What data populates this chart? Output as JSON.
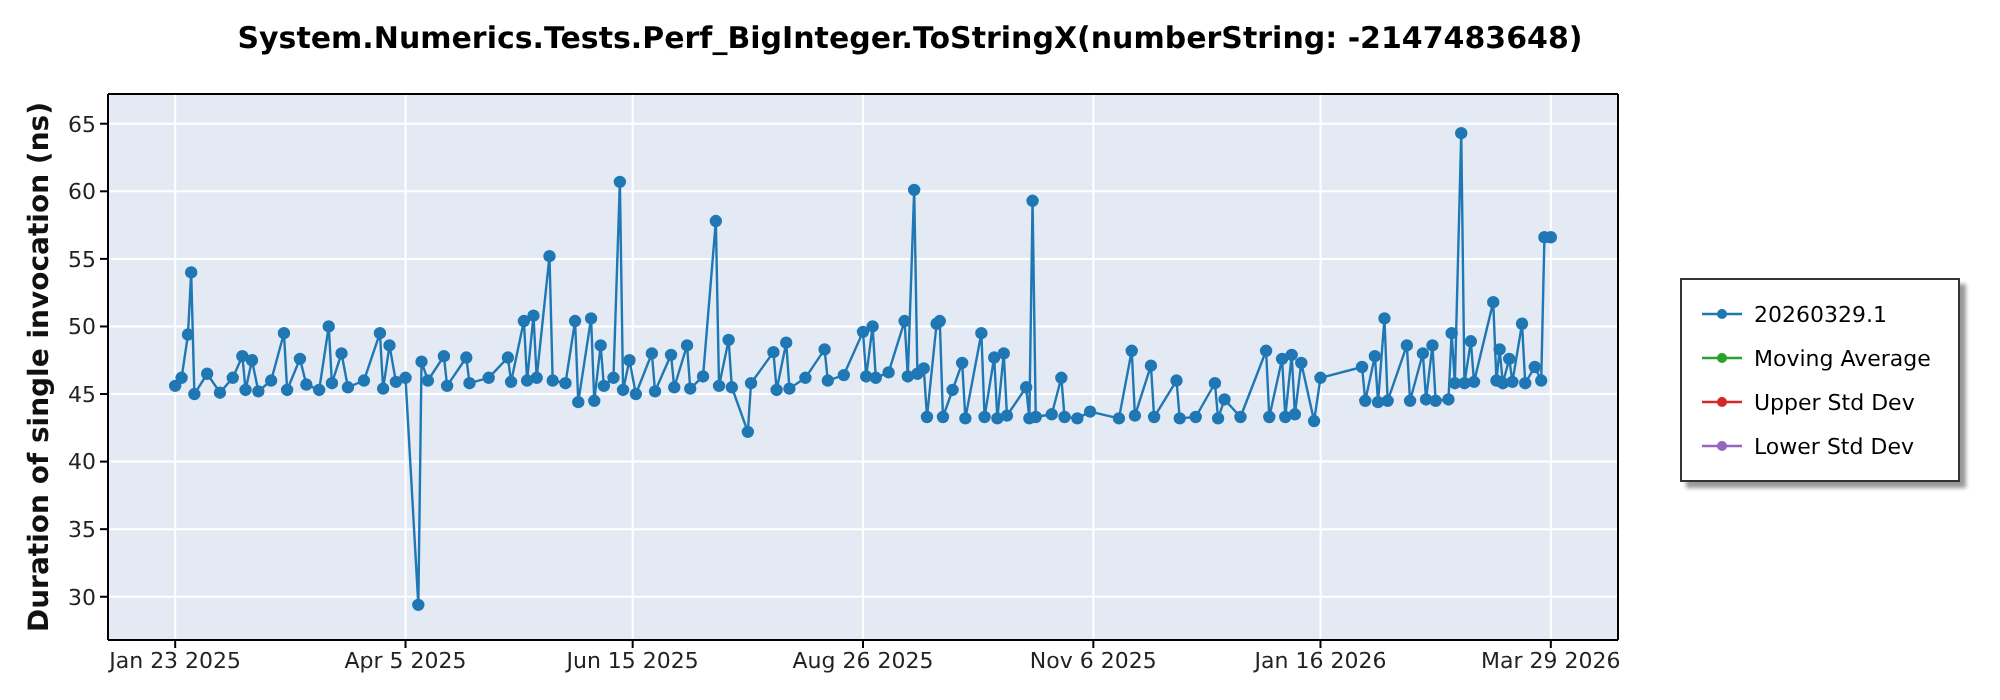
{
  "chart_data": {
    "type": "line",
    "title": "System.Numerics.Tests.Perf_BigInteger.ToStringX(numberString: -2147483648)",
    "ylabel": "Duration of single invocation (ns)",
    "x": [
      "2025-01-23",
      "2025-01-25",
      "2025-01-27",
      "2025-01-28",
      "2025-01-29",
      "2025-02-02",
      "2025-02-06",
      "2025-02-10",
      "2025-02-13",
      "2025-02-14",
      "2025-02-16",
      "2025-02-18",
      "2025-02-22",
      "2025-02-26",
      "2025-02-27",
      "2025-03-03",
      "2025-03-05",
      "2025-03-09",
      "2025-03-12",
      "2025-03-13",
      "2025-03-16",
      "2025-03-18",
      "2025-03-23",
      "2025-03-28",
      "2025-03-29",
      "2025-03-31",
      "2025-04-02",
      "2025-04-05",
      "2025-04-09",
      "2025-04-10",
      "2025-04-12",
      "2025-04-17",
      "2025-04-18",
      "2025-04-24",
      "2025-04-25",
      "2025-05-01",
      "2025-05-07",
      "2025-05-08",
      "2025-05-12",
      "2025-05-13",
      "2025-05-15",
      "2025-05-16",
      "2025-05-20",
      "2025-05-21",
      "2025-05-25",
      "2025-05-28",
      "2025-05-29",
      "2025-06-02",
      "2025-06-03",
      "2025-06-05",
      "2025-06-06",
      "2025-06-09",
      "2025-06-11",
      "2025-06-12",
      "2025-06-14",
      "2025-06-16",
      "2025-06-21",
      "2025-06-22",
      "2025-06-27",
      "2025-06-28",
      "2025-07-02",
      "2025-07-03",
      "2025-07-07",
      "2025-07-11",
      "2025-07-12",
      "2025-07-15",
      "2025-07-16",
      "2025-07-21",
      "2025-07-22",
      "2025-07-29",
      "2025-07-30",
      "2025-08-02",
      "2025-08-03",
      "2025-08-08",
      "2025-08-14",
      "2025-08-15",
      "2025-08-20",
      "2025-08-26",
      "2025-08-27",
      "2025-08-29",
      "2025-08-30",
      "2025-09-03",
      "2025-09-08",
      "2025-09-09",
      "2025-09-11",
      "2025-09-12",
      "2025-09-14",
      "2025-09-15",
      "2025-09-18",
      "2025-09-19",
      "2025-09-20",
      "2025-09-23",
      "2025-09-26",
      "2025-09-27",
      "2025-10-02",
      "2025-10-03",
      "2025-10-06",
      "2025-10-07",
      "2025-10-09",
      "2025-10-10",
      "2025-10-16",
      "2025-10-17",
      "2025-10-18",
      "2025-10-19",
      "2025-10-24",
      "2025-10-27",
      "2025-10-28",
      "2025-11-01",
      "2025-11-05",
      "2025-11-14",
      "2025-11-18",
      "2025-11-19",
      "2025-11-24",
      "2025-11-25",
      "2025-12-02",
      "2025-12-03",
      "2025-12-08",
      "2025-12-14",
      "2025-12-15",
      "2025-12-17",
      "2025-12-22",
      "2025-12-30",
      "2025-12-31",
      "2026-01-04",
      "2026-01-05",
      "2026-01-07",
      "2026-01-08",
      "2026-01-10",
      "2026-01-14",
      "2026-01-16",
      "2026-01-29",
      "2026-01-30",
      "2026-02-02",
      "2026-02-03",
      "2026-02-05",
      "2026-02-06",
      "2026-02-12",
      "2026-02-13",
      "2026-02-17",
      "2026-02-18",
      "2026-02-20",
      "2026-02-21",
      "2026-02-25",
      "2026-02-26",
      "2026-02-27",
      "2026-03-01",
      "2026-03-02",
      "2026-03-04",
      "2026-03-05",
      "2026-03-11",
      "2026-03-12",
      "2026-03-13",
      "2026-03-14",
      "2026-03-16",
      "2026-03-17",
      "2026-03-20",
      "2026-03-21",
      "2026-03-24",
      "2026-03-26",
      "2026-03-27",
      "2026-03-29"
    ],
    "series": [
      {
        "name": "20260329.1",
        "color": "#1f77b4",
        "values": [
          45.6,
          46.2,
          49.4,
          54.0,
          45.0,
          46.5,
          45.1,
          46.2,
          47.8,
          45.3,
          47.5,
          45.2,
          46.0,
          49.5,
          45.3,
          47.6,
          45.7,
          45.3,
          50.0,
          45.8,
          48.0,
          45.5,
          46.0,
          49.5,
          45.4,
          48.6,
          45.9,
          46.2,
          29.4,
          47.4,
          46.0,
          47.8,
          45.6,
          47.7,
          45.8,
          46.2,
          47.7,
          45.9,
          50.4,
          46.0,
          50.8,
          46.2,
          55.2,
          46.0,
          45.8,
          50.4,
          44.4,
          50.6,
          44.5,
          48.6,
          45.6,
          46.2,
          60.7,
          45.3,
          47.5,
          45.0,
          48.0,
          45.2,
          47.9,
          45.5,
          48.6,
          45.4,
          46.3,
          57.8,
          45.6,
          49.0,
          45.5,
          42.2,
          45.8,
          48.1,
          45.3,
          48.8,
          45.4,
          46.2,
          48.3,
          46.0,
          46.4,
          49.6,
          46.3,
          50.0,
          46.2,
          46.6,
          50.4,
          46.3,
          60.1,
          46.5,
          46.9,
          43.3,
          50.2,
          50.4,
          43.3,
          45.3,
          47.3,
          43.2,
          49.5,
          43.3,
          47.7,
          43.2,
          48.0,
          43.4,
          45.5,
          43.2,
          59.3,
          43.3,
          43.5,
          46.2,
          43.3,
          43.2,
          43.7,
          43.2,
          48.2,
          43.4,
          47.1,
          43.3,
          46.0,
          43.2,
          43.3,
          45.8,
          43.2,
          44.6,
          43.3,
          48.2,
          43.3,
          47.6,
          43.3,
          47.9,
          43.5,
          47.3,
          43.0,
          46.2,
          47.0,
          44.5,
          47.8,
          44.4,
          50.6,
          44.5,
          48.6,
          44.5,
          48.0,
          44.6,
          48.6,
          44.5,
          44.6,
          49.5,
          45.8,
          64.3,
          45.8,
          48.9,
          45.9,
          51.8,
          46.0,
          48.3,
          45.8,
          47.6,
          45.9,
          50.2,
          45.8,
          47.0,
          46.0,
          56.6,
          56.6
        ]
      },
      {
        "name": "Moving Average",
        "color": "#2ca02c",
        "values": [
          null,
          null,
          null,
          null,
          null,
          null,
          null,
          null,
          null,
          null,
          null,
          null,
          null,
          null,
          null,
          null,
          null,
          null,
          null,
          null,
          null,
          null,
          null,
          null,
          null,
          null,
          null,
          null,
          null,
          null,
          null,
          null,
          null,
          null,
          null,
          null,
          null,
          null,
          null,
          null,
          null,
          null,
          null,
          null,
          null,
          null,
          null,
          null,
          null,
          null,
          null,
          null,
          null,
          null,
          null,
          null,
          null,
          null,
          null,
          null,
          null,
          null,
          null,
          null,
          null,
          null,
          null,
          null,
          null,
          null,
          null,
          null,
          null,
          null,
          null,
          null,
          null,
          null,
          null,
          null,
          null,
          null,
          null,
          null,
          null,
          null,
          null,
          null,
          null,
          null,
          null,
          null,
          null,
          null,
          null,
          null,
          null,
          null,
          null,
          null,
          null,
          null,
          null,
          null,
          null,
          null,
          null,
          null,
          null,
          null,
          null,
          null,
          null,
          null,
          null,
          null,
          null,
          null,
          null,
          null,
          null,
          null,
          null,
          null,
          null,
          null,
          null,
          null,
          null,
          null,
          null,
          null,
          null,
          null,
          null,
          null,
          null,
          null,
          null,
          null,
          null,
          null,
          null,
          null,
          null,
          null,
          null,
          null,
          null,
          null,
          null,
          null,
          null,
          null,
          null,
          null,
          null,
          null,
          null,
          null,
          null
        ]
      },
      {
        "name": "Upper Std Dev",
        "color": "#d62728",
        "values": [
          null,
          null,
          null,
          null,
          null,
          null,
          null,
          null,
          null,
          null,
          null,
          null,
          null,
          null,
          null,
          null,
          null,
          null,
          null,
          null,
          null,
          null,
          null,
          null,
          null,
          null,
          null,
          null,
          null,
          null,
          null,
          null,
          null,
          null,
          null,
          null,
          null,
          null,
          null,
          null,
          null,
          null,
          null,
          null,
          null,
          null,
          null,
          null,
          null,
          null,
          null,
          null,
          null,
          null,
          null,
          null,
          null,
          null,
          null,
          null,
          null,
          null,
          null,
          null,
          null,
          null,
          null,
          null,
          null,
          null,
          null,
          null,
          null,
          null,
          null,
          null,
          null,
          null,
          null,
          null,
          null,
          null,
          null,
          null,
          null,
          null,
          null,
          null,
          null,
          null,
          null,
          null,
          null,
          null,
          null,
          null,
          null,
          null,
          null,
          null,
          null,
          null,
          null,
          null,
          null,
          null,
          null,
          null,
          null,
          null,
          null,
          null,
          null,
          null,
          null,
          null,
          null,
          null,
          null,
          null,
          null,
          null,
          null,
          null,
          null,
          null,
          null,
          null,
          null,
          null,
          null,
          null,
          null,
          null,
          null,
          null,
          null,
          null,
          null,
          null,
          null,
          null,
          null,
          null,
          null,
          null,
          null,
          null,
          null,
          null,
          null,
          null,
          null,
          null,
          null,
          null,
          null,
          null,
          null,
          null,
          null
        ]
      },
      {
        "name": "Lower Std Dev",
        "color": "#9467bd",
        "values": [
          null,
          null,
          null,
          null,
          null,
          null,
          null,
          null,
          null,
          null,
          null,
          null,
          null,
          null,
          null,
          null,
          null,
          null,
          null,
          null,
          null,
          null,
          null,
          null,
          null,
          null,
          null,
          null,
          null,
          null,
          null,
          null,
          null,
          null,
          null,
          null,
          null,
          null,
          null,
          null,
          null,
          null,
          null,
          null,
          null,
          null,
          null,
          null,
          null,
          null,
          null,
          null,
          null,
          null,
          null,
          null,
          null,
          null,
          null,
          null,
          null,
          null,
          null,
          null,
          null,
          null,
          null,
          null,
          null,
          null,
          null,
          null,
          null,
          null,
          null,
          null,
          null,
          null,
          null,
          null,
          null,
          null,
          null,
          null,
          null,
          null,
          null,
          null,
          null,
          null,
          null,
          null,
          null,
          null,
          null,
          null,
          null,
          null,
          null,
          null,
          null,
          null,
          null,
          null,
          null,
          null,
          null,
          null,
          null,
          null,
          null,
          null,
          null,
          null,
          null,
          null,
          null,
          null,
          null,
          null,
          null,
          null,
          null,
          null,
          null,
          null,
          null,
          null,
          null,
          null,
          null,
          null,
          null,
          null,
          null,
          null,
          null,
          null,
          null,
          null,
          null,
          null,
          null,
          null,
          null,
          null,
          null,
          null,
          null,
          null,
          null,
          null,
          null,
          null,
          null,
          null,
          null,
          null,
          null,
          null,
          null
        ]
      }
    ],
    "xlim": [
      "2025-01-02",
      "2026-04-19"
    ],
    "xticks": [
      {
        "value": "2025-01-23",
        "label": "Jan 23 2025"
      },
      {
        "value": "2025-04-05",
        "label": "Apr 5 2025"
      },
      {
        "value": "2025-06-15",
        "label": "Jun 15 2025"
      },
      {
        "value": "2025-08-26",
        "label": "Aug 26 2025"
      },
      {
        "value": "2025-11-06",
        "label": "Nov 6 2025"
      },
      {
        "value": "2026-01-16",
        "label": "Jan 16 2026"
      },
      {
        "value": "2026-03-29",
        "label": "Mar 29 2026"
      }
    ],
    "ylim": [
      26.8,
      67.2
    ],
    "yticks": [
      30,
      35,
      40,
      45,
      50,
      55,
      60,
      65
    ],
    "grid": true,
    "legend": "right",
    "marker": "circle",
    "line_style": "solid"
  }
}
